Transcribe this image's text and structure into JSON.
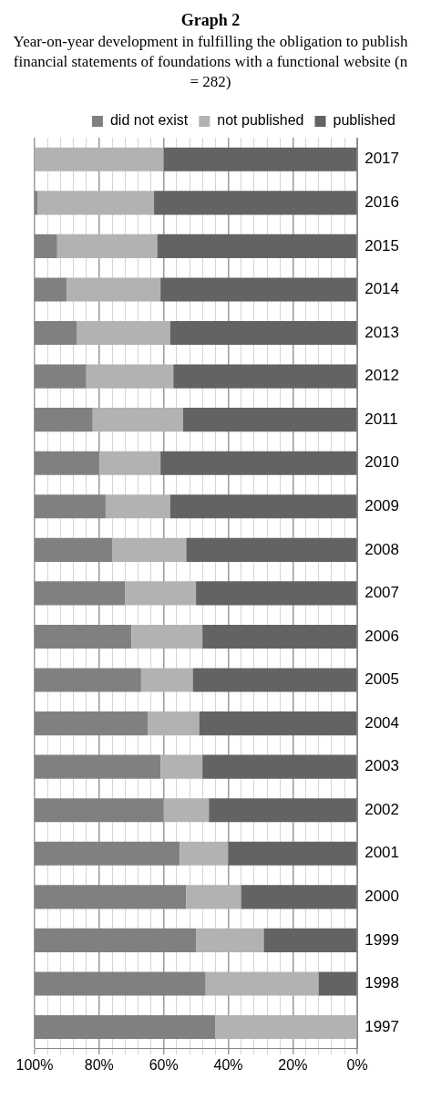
{
  "chart_data": {
    "type": "bar",
    "stacked": true,
    "orientation": "horizontal",
    "title": "Graph 2",
    "subtitle": "Year-on-year development in fulfilling the obligation to publish financial statements of foundations with a functional website (n = 282)",
    "categories": [
      "2017",
      "2016",
      "2015",
      "2014",
      "2013",
      "2012",
      "2011",
      "2010",
      "2009",
      "2008",
      "2007",
      "2006",
      "2005",
      "2004",
      "2003",
      "2002",
      "2001",
      "2000",
      "1999",
      "1998",
      "1997"
    ],
    "series": [
      {
        "name": "published",
        "color": "#636363",
        "values": [
          60,
          63,
          62,
          61,
          58,
          57,
          54,
          61,
          58,
          53,
          50,
          48,
          51,
          49,
          48,
          46,
          40,
          36,
          29,
          12,
          0
        ]
      },
      {
        "name": "not published",
        "color": "#b2b2b2",
        "values": [
          40,
          36,
          31,
          29,
          29,
          27,
          28,
          19,
          20,
          23,
          22,
          22,
          16,
          16,
          13,
          14,
          15,
          17,
          21,
          35,
          44
        ]
      },
      {
        "name": "did not exist",
        "color": "#808080",
        "values": [
          0,
          1,
          7,
          10,
          13,
          16,
          18,
          20,
          22,
          24,
          28,
          30,
          33,
          35,
          39,
          40,
          45,
          47,
          50,
          53,
          56
        ]
      }
    ],
    "xlim": [
      100,
      0
    ],
    "xticks": [
      {
        "value": 0,
        "label": "0%"
      },
      {
        "value": 4,
        "label": null
      },
      {
        "value": 8,
        "label": null
      },
      {
        "value": 12,
        "label": null
      },
      {
        "value": 16,
        "label": null
      },
      {
        "value": 20,
        "label": "20%"
      },
      {
        "value": 24,
        "label": null
      },
      {
        "value": 28,
        "label": null
      },
      {
        "value": 32,
        "label": null
      },
      {
        "value": 36,
        "label": null
      },
      {
        "value": 40,
        "label": "40%"
      },
      {
        "value": 44,
        "label": null
      },
      {
        "value": 48,
        "label": null
      },
      {
        "value": 52,
        "label": null
      },
      {
        "value": 56,
        "label": null
      },
      {
        "value": 60,
        "label": "60%"
      },
      {
        "value": 64,
        "label": null
      },
      {
        "value": 68,
        "label": null
      },
      {
        "value": 72,
        "label": null
      },
      {
        "value": 76,
        "label": null
      },
      {
        "value": 80,
        "label": "80%"
      },
      {
        "value": 84,
        "label": null
      },
      {
        "value": 88,
        "label": null
      },
      {
        "value": 92,
        "label": null
      },
      {
        "value": 96,
        "label": null
      },
      {
        "value": 100,
        "label": "100%"
      }
    ],
    "grid": "x",
    "legend": "top right"
  }
}
